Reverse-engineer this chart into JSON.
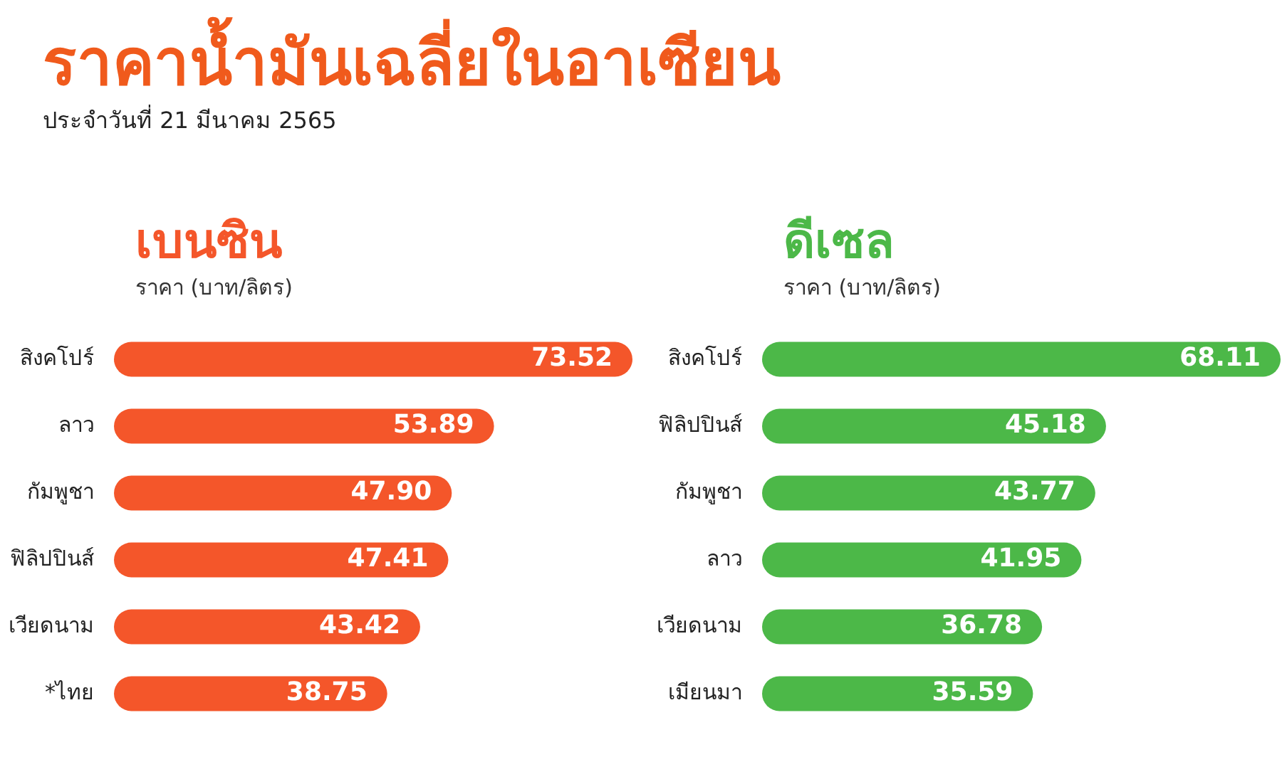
{
  "chart_data": [
    {
      "type": "other",
      "title": "ราคาน้ำมันเฉลี่ยในอาเซียน",
      "subtitle": "ประจำวันที่ 21 มีนาคม 2565"
    },
    {
      "type": "bar",
      "orientation": "horizontal",
      "title": "เบนซิน",
      "subtitle": "ราคา (บาท/ลิตร)",
      "categories": [
        "สิงคโปร์",
        "ลาว",
        "กัมพูชา",
        "ฟิลิปปินส์",
        "เวียดนาม",
        "*ไทย"
      ],
      "values": [
        73.52,
        53.89,
        47.9,
        47.41,
        43.42,
        38.75
      ],
      "value_labels": [
        "73.52",
        "53.89",
        "47.90",
        "47.41",
        "43.42",
        "38.75"
      ],
      "color": "#f4562a"
    },
    {
      "type": "bar",
      "orientation": "horizontal",
      "title": "ดีเซล",
      "subtitle": "ราคา (บาท/ลิตร)",
      "categories": [
        "สิงคโปร์",
        "ฟิลิปปินส์",
        "กัมพูชา",
        "ลาว",
        "เวียดนาม",
        "เมียนมา"
      ],
      "values": [
        68.11,
        45.18,
        43.77,
        41.95,
        36.78,
        35.59
      ],
      "value_labels": [
        "68.11",
        "45.18",
        "43.77",
        "41.95",
        "36.78",
        "35.59"
      ],
      "color": "#4cb848"
    }
  ]
}
